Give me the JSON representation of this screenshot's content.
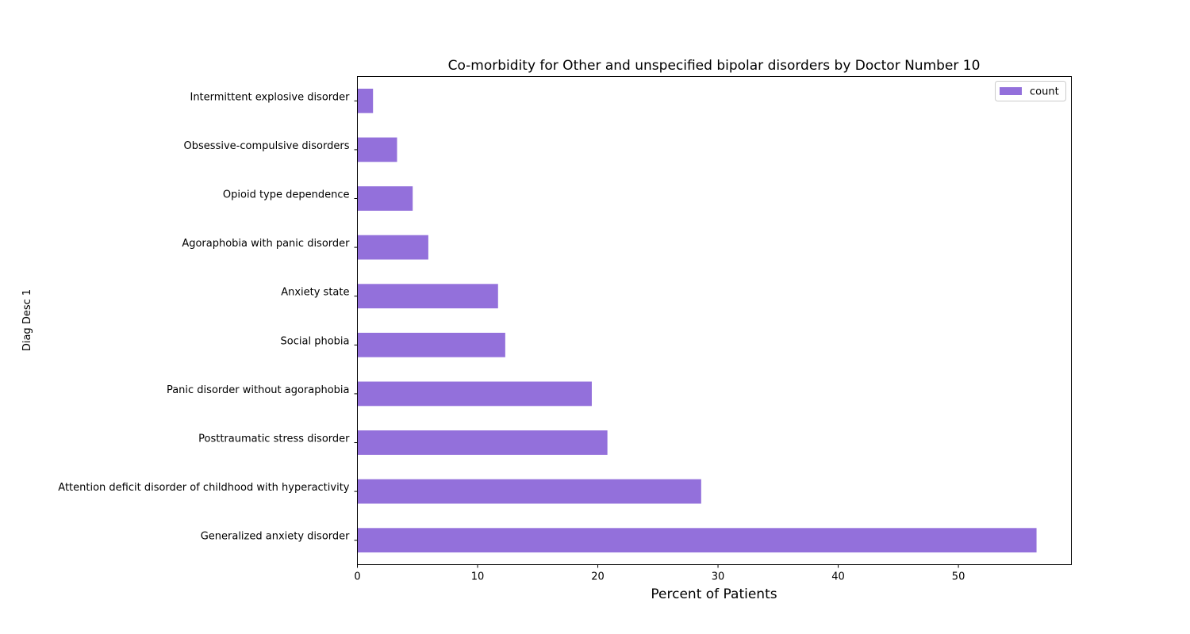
{
  "chart_data": {
    "type": "bar",
    "orientation": "horizontal",
    "title": "Co-morbidity for Other and unspecified bipolar disorders by Doctor Number 10",
    "xlabel": "Percent of Patients",
    "ylabel": "Diag Desc 1",
    "categories": [
      "Generalized anxiety disorder",
      "Attention deficit disorder of childhood with hyperactivity",
      "Posttraumatic stress disorder",
      "Panic disorder without agoraphobia",
      "Social phobia",
      "Anxiety state",
      "Agoraphobia with panic disorder",
      "Opioid type dependence",
      "Obsessive-compulsive disorders",
      "Intermittent explosive disorder"
    ],
    "series": [
      {
        "name": "count",
        "color": "#9370db",
        "values": [
          56.5,
          28.6,
          20.8,
          19.5,
          12.3,
          11.7,
          5.9,
          4.6,
          3.3,
          1.3
        ]
      }
    ],
    "xlim": [
      0,
      59.4
    ],
    "xticks": [
      0,
      10,
      20,
      30,
      40,
      50
    ],
    "grid": false,
    "legend": "top-right"
  }
}
